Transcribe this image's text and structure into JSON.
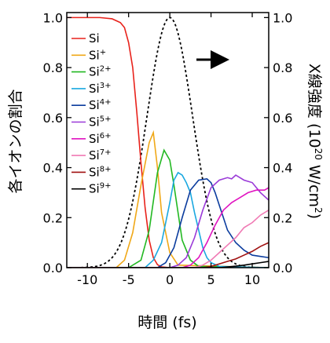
{
  "chart_data": {
    "type": "line",
    "xlabel": "時間 (fs)",
    "ylabel_left": "各イオンの割合",
    "ylabel_right": {
      "main": "X線強度 (10",
      "exp": "20",
      "mid": " W/cm",
      "exp2": "2",
      "end": ")"
    },
    "xlim": [
      -12.5,
      12
    ],
    "ylim_left": [
      0,
      1.02
    ],
    "ylim_right": [
      0,
      1.02
    ],
    "xticks": [
      -10,
      -5,
      0,
      5,
      10
    ],
    "yticks_left": [
      "0.0",
      "0.2",
      "0.4",
      "0.6",
      "0.8",
      "1.0"
    ],
    "yticks_right": [
      "0.0",
      "0.2",
      "0.4",
      "0.6",
      "0.8",
      "1.0"
    ],
    "arrow_direction": "right",
    "legend_placement": "left",
    "series": [
      {
        "name": "Si",
        "base": "Si",
        "sup": "",
        "color": "#e8221b",
        "x": [
          -12.5,
          -8.5,
          -7,
          -6,
          -5.5,
          -5,
          -4.5,
          -4,
          -3.5,
          -3,
          -2.5,
          -2,
          -1.5,
          -1,
          0,
          12
        ],
        "y": [
          1.0,
          1.0,
          0.995,
          0.98,
          0.96,
          0.9,
          0.8,
          0.62,
          0.42,
          0.24,
          0.11,
          0.04,
          0.012,
          0.003,
          0,
          0
        ]
      },
      {
        "name": "Si+",
        "base": "Si",
        "sup": "+",
        "color": "#f0a818",
        "x": [
          -12.5,
          -6.5,
          -5.5,
          -4.5,
          -3.5,
          -2.5,
          -2,
          -1.5,
          -1,
          0,
          1,
          12
        ],
        "y": [
          0,
          0,
          0.03,
          0.14,
          0.33,
          0.5,
          0.54,
          0.4,
          0.22,
          0.06,
          0.01,
          0
        ]
      },
      {
        "name": "Si2+",
        "base": "Si",
        "sup": "2+",
        "color": "#22b822",
        "x": [
          -12.5,
          -5,
          -3.5,
          -2.5,
          -1.5,
          -0.7,
          0,
          0.5,
          1,
          1.5,
          2.5,
          3.5,
          12
        ],
        "y": [
          0,
          0,
          0.03,
          0.15,
          0.38,
          0.47,
          0.43,
          0.33,
          0.22,
          0.11,
          0.03,
          0.005,
          0
        ]
      },
      {
        "name": "Si3+",
        "base": "Si",
        "sup": "3+",
        "color": "#1aa8e0",
        "x": [
          -12.5,
          -3,
          -2,
          -1,
          0,
          0.5,
          1,
          1.5,
          2,
          2.5,
          3,
          3.5,
          4,
          4.5,
          5,
          6,
          12
        ],
        "y": [
          0,
          0,
          0.03,
          0.1,
          0.26,
          0.35,
          0.38,
          0.37,
          0.34,
          0.3,
          0.22,
          0.15,
          0.08,
          0.04,
          0.02,
          0.005,
          0
        ]
      },
      {
        "name": "Si4+",
        "base": "Si",
        "sup": "4+",
        "color": "#0b3c9e",
        "x": [
          -12.5,
          -1.5,
          -0.5,
          0.5,
          1.5,
          2.5,
          3.5,
          4.5,
          5,
          5.5,
          6,
          6.5,
          7,
          8,
          9,
          10,
          11,
          12
        ],
        "y": [
          0,
          0,
          0.02,
          0.08,
          0.2,
          0.31,
          0.35,
          0.355,
          0.34,
          0.3,
          0.25,
          0.2,
          0.15,
          0.1,
          0.07,
          0.05,
          0.045,
          0.04
        ]
      },
      {
        "name": "Si5+",
        "base": "Si",
        "sup": "5+",
        "color": "#9a3ad8",
        "x": [
          -12.5,
          0,
          1,
          2,
          3,
          4,
          5,
          6,
          7,
          7.5,
          8,
          9,
          10,
          11,
          12
        ],
        "y": [
          0,
          0,
          0.01,
          0.04,
          0.12,
          0.23,
          0.32,
          0.35,
          0.36,
          0.355,
          0.37,
          0.35,
          0.34,
          0.3,
          0.27
        ]
      },
      {
        "name": "Si6+",
        "base": "Si",
        "sup": "6+",
        "color": "#e014c0",
        "x": [
          -12.5,
          1.5,
          2.5,
          3.5,
          4.5,
          5.5,
          6.5,
          7.5,
          8.5,
          9.5,
          10.5,
          11.5,
          12
        ],
        "y": [
          0,
          0,
          0.01,
          0.04,
          0.1,
          0.17,
          0.23,
          0.26,
          0.28,
          0.3,
          0.31,
          0.31,
          0.32
        ]
      },
      {
        "name": "Si7+",
        "base": "Si",
        "sup": "7+",
        "color": "#f07ab4",
        "x": [
          -12.5,
          3,
          4,
          5,
          6,
          7,
          8,
          9,
          10,
          11,
          12
        ],
        "y": [
          0,
          0,
          0.01,
          0.03,
          0.06,
          0.09,
          0.12,
          0.16,
          0.18,
          0.21,
          0.23
        ]
      },
      {
        "name": "Si8+",
        "base": "Si",
        "sup": "8+",
        "color": "#a01010",
        "x": [
          -12.5,
          4,
          5,
          6,
          7,
          8,
          9,
          10,
          11,
          12
        ],
        "y": [
          0,
          0,
          0.005,
          0.015,
          0.025,
          0.035,
          0.05,
          0.065,
          0.085,
          0.1
        ]
      },
      {
        "name": "Si9+",
        "base": "Si",
        "sup": "9+",
        "color": "#000000",
        "x": [
          -12.5,
          6,
          7,
          8,
          9,
          10,
          11,
          12
        ],
        "y": [
          0,
          0,
          0.003,
          0.006,
          0.01,
          0.015,
          0.02,
          0.025
        ]
      }
    ],
    "pulse": {
      "name": "X線強度",
      "peak": 1.0,
      "center": 0,
      "fwhm": 6.5,
      "style": "dotted",
      "color": "#000000"
    }
  }
}
